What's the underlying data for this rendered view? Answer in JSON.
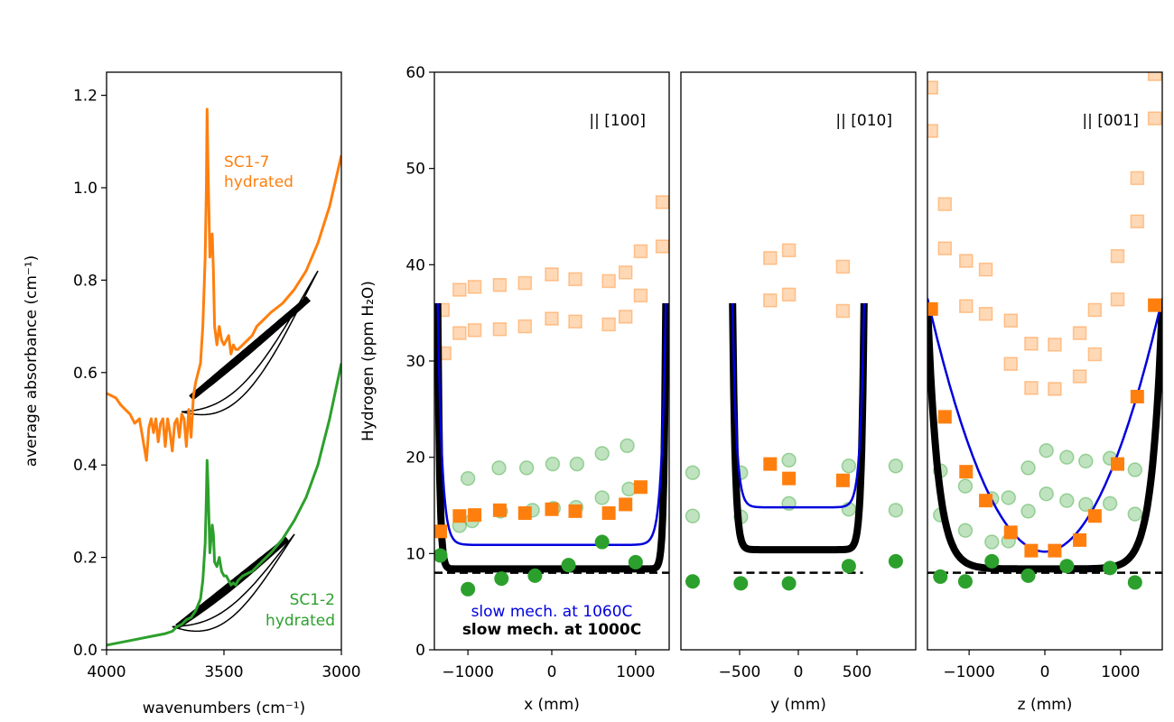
{
  "colors": {
    "orange": "#ff7f0e",
    "green": "#2ca02c",
    "blue": "#0000dd",
    "black": "#000000"
  },
  "chart_data": [
    {
      "type": "line",
      "panel": "spectra",
      "xlabel": "wavenumbers (cm⁻¹)",
      "ylabel": "average absorbance (cm⁻¹)",
      "xlim": [
        4000,
        3000
      ],
      "ylim": [
        0,
        1.25
      ],
      "xticks": [
        4000,
        3500,
        3000
      ],
      "yticks": [
        0.0,
        0.2,
        0.4,
        0.6,
        0.8,
        1.0,
        1.2
      ],
      "annotations": [
        {
          "lines": [
            "SC1-7",
            "hydrated"
          ],
          "color": "orange"
        },
        {
          "lines": [
            "SC1-2",
            "hydrated"
          ],
          "color": "green"
        }
      ],
      "series": [
        {
          "color": "orange",
          "x": [
            4000,
            3980,
            3960,
            3940,
            3920,
            3900,
            3880,
            3860,
            3850,
            3840,
            3830,
            3820,
            3810,
            3800,
            3790,
            3780,
            3770,
            3760,
            3750,
            3740,
            3730,
            3720,
            3710,
            3700,
            3690,
            3680,
            3670,
            3660,
            3650,
            3640,
            3630,
            3620,
            3610,
            3600,
            3590,
            3580,
            3575,
            3572,
            3568,
            3560,
            3550,
            3545,
            3540,
            3530,
            3520,
            3510,
            3500,
            3490,
            3480,
            3470,
            3460,
            3450,
            3440,
            3420,
            3400,
            3380,
            3360,
            3340,
            3300,
            3250,
            3200,
            3150,
            3100,
            3050,
            3000
          ],
          "y": [
            0.555,
            0.55,
            0.545,
            0.53,
            0.52,
            0.51,
            0.49,
            0.5,
            0.47,
            0.44,
            0.41,
            0.48,
            0.5,
            0.47,
            0.5,
            0.45,
            0.49,
            0.5,
            0.44,
            0.5,
            0.47,
            0.43,
            0.49,
            0.5,
            0.46,
            0.51,
            0.5,
            0.44,
            0.52,
            0.46,
            0.55,
            0.58,
            0.6,
            0.62,
            0.7,
            0.85,
            1.0,
            1.17,
            1.05,
            0.85,
            0.9,
            0.82,
            0.7,
            0.66,
            0.7,
            0.67,
            0.66,
            0.67,
            0.68,
            0.64,
            0.66,
            0.65,
            0.65,
            0.66,
            0.67,
            0.68,
            0.7,
            0.71,
            0.73,
            0.75,
            0.78,
            0.82,
            0.88,
            0.96,
            1.07
          ]
        },
        {
          "color": "green",
          "x": [
            4000,
            3950,
            3900,
            3850,
            3800,
            3750,
            3720,
            3700,
            3680,
            3660,
            3640,
            3620,
            3600,
            3590,
            3580,
            3575,
            3572,
            3568,
            3560,
            3550,
            3545,
            3540,
            3530,
            3520,
            3510,
            3500,
            3490,
            3480,
            3470,
            3460,
            3450,
            3440,
            3420,
            3400,
            3380,
            3360,
            3340,
            3300,
            3250,
            3200,
            3150,
            3100,
            3050,
            3000
          ],
          "y": [
            0.01,
            0.015,
            0.02,
            0.025,
            0.03,
            0.035,
            0.04,
            0.05,
            0.055,
            0.065,
            0.07,
            0.085,
            0.11,
            0.15,
            0.23,
            0.33,
            0.41,
            0.36,
            0.21,
            0.27,
            0.25,
            0.19,
            0.18,
            0.2,
            0.17,
            0.16,
            0.16,
            0.15,
            0.14,
            0.145,
            0.14,
            0.15,
            0.16,
            0.165,
            0.17,
            0.18,
            0.19,
            0.21,
            0.24,
            0.28,
            0.33,
            0.4,
            0.5,
            0.62
          ]
        }
      ]
    },
    {
      "type": "scatter",
      "panel": "x-profile",
      "annotation": "|| [100]",
      "xlabel": "x (mm)",
      "ylabel": "Hydrogen (ppm H₂O)",
      "xlim": [
        -1400,
        1400
      ],
      "ylim": [
        0,
        60
      ],
      "xticks": [
        -1000,
        0,
        1000
      ],
      "xtick_labels": [
        "−1000",
        "0",
        "1000"
      ],
      "yticks": [
        0,
        10,
        20,
        30,
        40,
        50,
        60
      ],
      "legend_text": [
        {
          "label": "slow mech. at 1060C",
          "color": "blue",
          "weight": "normal"
        },
        {
          "label": "slow mech. at 1000C",
          "color": "black",
          "weight": "bold"
        }
      ],
      "reference_line": 8,
      "model_1060C": {
        "x0": -1360,
        "x1": 1360,
        "plateau": 10.9,
        "edge": 36,
        "width": 110
      },
      "model_1000C": {
        "x0": -1360,
        "x1": 1360,
        "plateau": 8.4,
        "edge": 36,
        "width": 50
      },
      "orange_light": {
        "x": [
          -1300,
          -1280,
          -1100,
          -1100,
          -920,
          -920,
          -620,
          -620,
          -320,
          -320,
          0,
          0,
          280,
          280,
          680,
          680,
          880,
          880,
          1060,
          1060,
          1320,
          1320
        ],
        "y": [
          35.3,
          30.8,
          37.4,
          32.9,
          37.7,
          33.2,
          37.9,
          33.3,
          38.1,
          33.6,
          39.0,
          34.4,
          38.5,
          34.1,
          38.3,
          33.8,
          39.2,
          34.6,
          41.4,
          36.8,
          46.5,
          41.9
        ]
      },
      "orange_solid": {
        "x": [
          -1330,
          -1100,
          -920,
          -620,
          -320,
          0,
          280,
          680,
          880,
          1060
        ],
        "y": [
          12.3,
          13.9,
          14.0,
          14.5,
          14.2,
          14.6,
          14.4,
          14.2,
          15.1,
          16.9
        ]
      },
      "green_light": {
        "x": [
          -1100,
          -950,
          -1000,
          -630,
          -610,
          -300,
          -230,
          10,
          20,
          300,
          290,
          600,
          600,
          900,
          920
        ],
        "y": [
          12.9,
          13.4,
          17.8,
          18.9,
          14.4,
          18.9,
          14.5,
          19.3,
          14.7,
          19.3,
          14.8,
          20.4,
          15.8,
          21.2,
          16.7
        ]
      },
      "green_solid": {
        "x": [
          -1330,
          -1000,
          -600,
          -200,
          200,
          600,
          1000
        ],
        "y": [
          9.8,
          6.3,
          7.4,
          7.7,
          8.8,
          11.2,
          9.1
        ]
      }
    },
    {
      "type": "scatter",
      "panel": "y-profile",
      "annotation": "|| [010]",
      "xlabel": "y (mm)",
      "xlim": [
        -1000,
        1000
      ],
      "ylim": [
        0,
        60
      ],
      "xticks": [
        -500,
        0,
        500
      ],
      "xtick_labels": [
        "−500",
        "0",
        "500"
      ],
      "reference_line": 8,
      "reference_range": [
        -550,
        550
      ],
      "model_1060C": {
        "x0": -560,
        "x1": 560,
        "plateau": 14.8,
        "edge": 36,
        "width": 70
      },
      "model_1000C": {
        "x0": -560,
        "x1": 560,
        "plateau": 10.4,
        "edge": 36,
        "width": 50
      },
      "orange_light": {
        "x": [
          -240,
          -240,
          -80,
          -80,
          380,
          380
        ],
        "y": [
          40.7,
          36.3,
          41.5,
          36.9,
          39.8,
          35.2
        ]
      },
      "orange_solid": {
        "x": [
          -240,
          -80,
          380
        ],
        "y": [
          19.3,
          17.8,
          17.6
        ]
      },
      "green_light": {
        "x": [
          -900,
          -900,
          -490,
          -490,
          -80,
          -80,
          430,
          430,
          830,
          830
        ],
        "y": [
          18.4,
          13.9,
          18.4,
          13.8,
          19.7,
          15.2,
          19.1,
          14.6,
          19.1,
          14.5
        ]
      },
      "green_solid": {
        "x": [
          -900,
          -490,
          -80,
          430,
          830
        ],
        "y": [
          7.1,
          6.9,
          6.9,
          8.7,
          9.2
        ]
      }
    },
    {
      "type": "scatter",
      "panel": "z-profile",
      "annotation": "|| [001]",
      "xlabel": "z (mm)",
      "xlim": [
        -1550,
        1550
      ],
      "ylim": [
        0,
        60
      ],
      "xticks": [
        -1000,
        0,
        1000
      ],
      "xtick_labels": [
        "−1000",
        "0",
        "1000"
      ],
      "reference_line": 8,
      "model_1060C": {
        "x0": -1550,
        "x1": 1550,
        "plateau": 10.2,
        "edge": 36.5,
        "shape": "parabola"
      },
      "model_1000C": {
        "x0": -1550,
        "x1": 1550,
        "plateau": 8.4,
        "edge": 36,
        "width": 300
      },
      "orange_light": {
        "x": [
          -1500,
          -1500,
          -1320,
          -1320,
          -1040,
          -1040,
          -780,
          -780,
          -450,
          -450,
          -180,
          -180,
          130,
          130,
          460,
          460,
          660,
          660,
          960,
          960,
          1220,
          1220,
          1450,
          1450
        ],
        "y": [
          58.4,
          53.9,
          46.3,
          41.7,
          40.4,
          35.7,
          39.5,
          34.9,
          34.2,
          29.7,
          31.8,
          27.2,
          31.7,
          27.1,
          32.9,
          28.4,
          35.3,
          30.7,
          40.9,
          36.4,
          49.0,
          44.5,
          59.8,
          55.2
        ]
      },
      "orange_solid": {
        "x": [
          -1500,
          -1320,
          -1040,
          -780,
          -450,
          -180,
          130,
          460,
          660,
          960,
          1220,
          1450
        ],
        "y": [
          35.4,
          24.2,
          18.5,
          15.5,
          12.2,
          10.3,
          10.3,
          11.4,
          13.9,
          19.3,
          26.3,
          35.8
        ]
      },
      "green_light": {
        "x": [
          -1380,
          -1380,
          -1050,
          -1050,
          -700,
          -700,
          -480,
          -480,
          -220,
          -220,
          20,
          20,
          290,
          290,
          540,
          540,
          860,
          860,
          1190,
          1190
        ],
        "y": [
          18.6,
          14.0,
          17.0,
          12.4,
          15.7,
          11.2,
          15.8,
          11.3,
          18.9,
          14.4,
          20.7,
          16.2,
          20.0,
          15.5,
          19.6,
          15.1,
          19.9,
          15.2,
          18.7,
          14.1
        ]
      },
      "green_solid": {
        "x": [
          -1380,
          -1050,
          -700,
          -220,
          290,
          860,
          1190
        ],
        "y": [
          7.6,
          7.1,
          9.2,
          7.7,
          8.7,
          8.5,
          7.0
        ]
      }
    }
  ]
}
